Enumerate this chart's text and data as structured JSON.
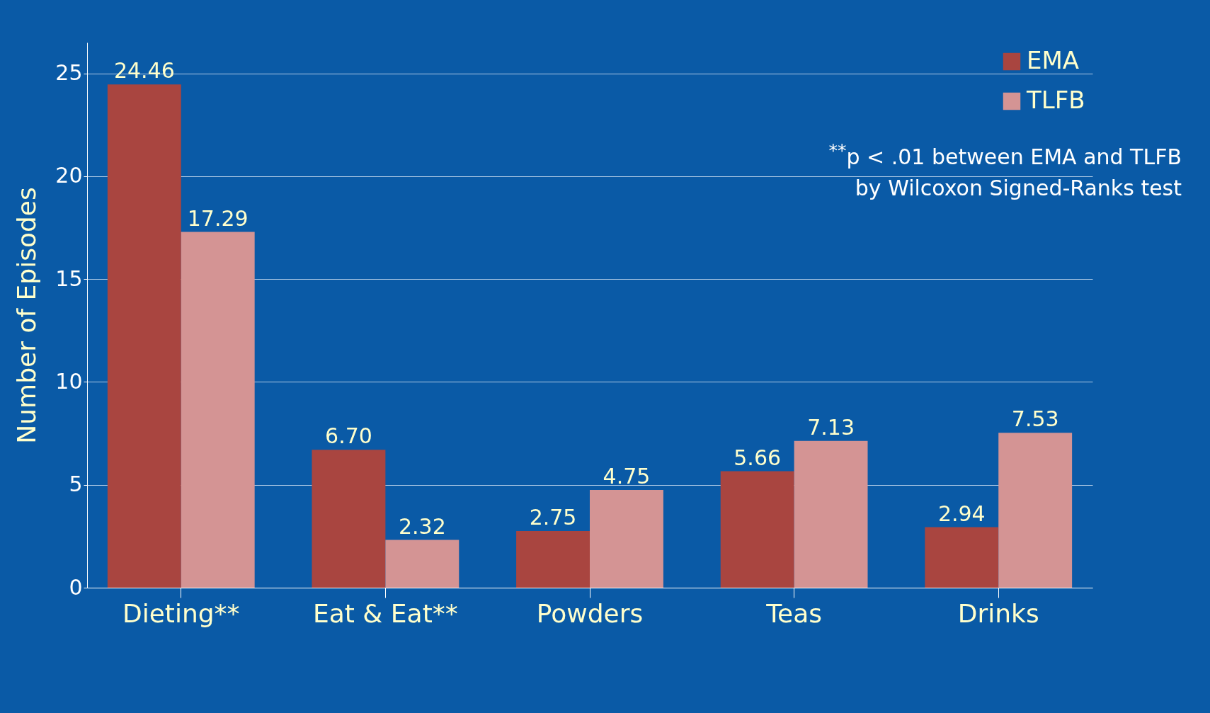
{
  "chart_data": {
    "type": "bar",
    "ylabel": "Number of Episodes",
    "categories": [
      "Dieting**",
      "Eat & Eat**",
      "Powders",
      "Teas",
      "Drinks"
    ],
    "series": [
      {
        "name": "EMA",
        "color": "#a94540",
        "values": [
          24.46,
          6.7,
          2.75,
          5.66,
          2.94
        ],
        "value_labels": [
          "24.46",
          "6.70",
          "2.75",
          "5.66",
          "2.94"
        ]
      },
      {
        "name": "TLFB",
        "color": "#d49494",
        "values": [
          17.29,
          2.32,
          4.75,
          7.13,
          7.53
        ],
        "value_labels": [
          "17.29",
          "2.32",
          "4.75",
          "7.13",
          "7.53"
        ]
      }
    ],
    "ylim": [
      0,
      26.5
    ],
    "yticks": [
      0,
      5,
      10,
      15,
      20,
      25
    ],
    "grid": "y",
    "legend": "top right",
    "annotations": [
      "$^{**}$p < .01 between EMA and TLFB",
      "by Wilcoxon Signed-Ranks test"
    ]
  }
}
